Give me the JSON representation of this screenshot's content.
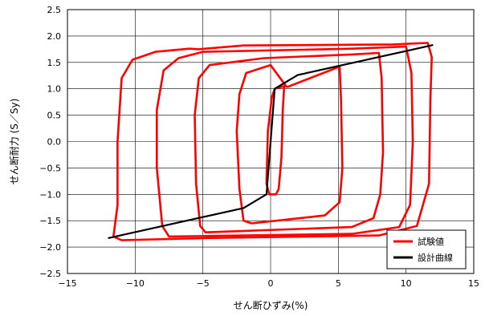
{
  "chart_data": {
    "type": "line",
    "xlabel": "せん断ひずみ(%)",
    "ylabel": "せん断耐力 (S／Sy)",
    "xlim": [
      -15,
      15
    ],
    "ylim": [
      -2.5,
      2.5
    ],
    "xticks": [
      -15,
      -10,
      -5,
      0,
      5,
      10,
      15
    ],
    "yticks": [
      2.5,
      2.0,
      1.5,
      1.0,
      0.5,
      0.0,
      -0.5,
      -1.0,
      -1.5,
      -2.0,
      -2.5
    ],
    "xtick_labels": [
      "−15",
      "−10",
      "−5",
      "0",
      "5",
      "10",
      "15"
    ],
    "ytick_labels": [
      "2.5",
      "2.0",
      "1.5",
      "1.0",
      "0.5",
      "0.0",
      "−0.5",
      "−1.0",
      "−1.5",
      "−2.0",
      "−2.5"
    ],
    "grid": "x-and-y at ticks",
    "legend_position": "bottom-right",
    "series": [
      {
        "name": "試験値",
        "color": "#ff0000",
        "loops": [
          [
            [
              -0.3,
              -0.8
            ],
            [
              -0.2,
              0.2
            ],
            [
              0.1,
              0.85
            ],
            [
              0.3,
              1.0
            ],
            [
              1.0,
              1.05
            ],
            [
              0.9,
              0.6
            ],
            [
              0.8,
              -0.3
            ],
            [
              0.6,
              -0.9
            ],
            [
              0.4,
              -1.0
            ],
            [
              -0.1,
              -1.0
            ],
            [
              -0.3,
              -0.8
            ]
          ],
          [
            [
              1.2,
              1.03
            ],
            [
              5.1,
              1.42
            ],
            [
              5.2,
              0.8
            ],
            [
              5.3,
              -0.5
            ],
            [
              5.1,
              -1.15
            ],
            [
              4.0,
              -1.4
            ],
            [
              -1.4,
              -1.55
            ],
            [
              -2.0,
              -1.5
            ],
            [
              -2.3,
              -0.9
            ],
            [
              -2.5,
              0.2
            ],
            [
              -2.3,
              0.9
            ],
            [
              -1.8,
              1.3
            ],
            [
              0.0,
              1.45
            ],
            [
              1.2,
              1.03
            ]
          ],
          [
            [
              -0.5,
              1.58
            ],
            [
              6.0,
              1.65
            ],
            [
              8.0,
              1.68
            ],
            [
              8.2,
              1.2
            ],
            [
              8.3,
              -0.2
            ],
            [
              8.1,
              -1.0
            ],
            [
              7.6,
              -1.45
            ],
            [
              6.0,
              -1.62
            ],
            [
              -4.8,
              -1.72
            ],
            [
              -5.2,
              -1.6
            ],
            [
              -5.5,
              -0.8
            ],
            [
              -5.6,
              0.5
            ],
            [
              -5.3,
              1.2
            ],
            [
              -4.5,
              1.45
            ],
            [
              -0.5,
              1.58
            ]
          ],
          [
            [
              -5.0,
              1.7
            ],
            [
              6.0,
              1.76
            ],
            [
              10.0,
              1.8
            ],
            [
              10.4,
              1.3
            ],
            [
              10.5,
              0.0
            ],
            [
              10.3,
              -1.2
            ],
            [
              9.5,
              -1.62
            ],
            [
              6.0,
              -1.75
            ],
            [
              -7.5,
              -1.8
            ],
            [
              -8.0,
              -1.6
            ],
            [
              -8.4,
              -0.5
            ],
            [
              -8.4,
              0.6
            ],
            [
              -7.9,
              1.35
            ],
            [
              -6.8,
              1.58
            ],
            [
              -5.0,
              1.7
            ]
          ],
          [
            [
              -5.3,
              1.75
            ],
            [
              -6.0,
              1.76
            ],
            [
              -8.5,
              1.7
            ],
            [
              -10.2,
              1.55
            ],
            [
              -11.0,
              1.2
            ],
            [
              -11.3,
              0.0
            ],
            [
              -11.3,
              -1.2
            ],
            [
              -11.6,
              -1.8
            ],
            [
              -11.0,
              -1.87
            ],
            [
              -5.0,
              -1.83
            ],
            [
              8.0,
              -1.78
            ],
            [
              10.8,
              -1.6
            ],
            [
              11.7,
              -0.8
            ],
            [
              11.8,
              0.8
            ],
            [
              11.9,
              1.6
            ],
            [
              11.6,
              1.87
            ],
            [
              9.0,
              1.84
            ],
            [
              -2.0,
              1.82
            ],
            [
              -5.3,
              1.75
            ]
          ]
        ]
      },
      {
        "name": "設計曲線",
        "color": "#000000",
        "points": [
          [
            -12.0,
            -1.83
          ],
          [
            -2.0,
            -1.26
          ],
          [
            -0.3,
            -1.0
          ],
          [
            0.3,
            1.0
          ],
          [
            2.0,
            1.26
          ],
          [
            12.0,
            1.83
          ]
        ]
      }
    ]
  }
}
